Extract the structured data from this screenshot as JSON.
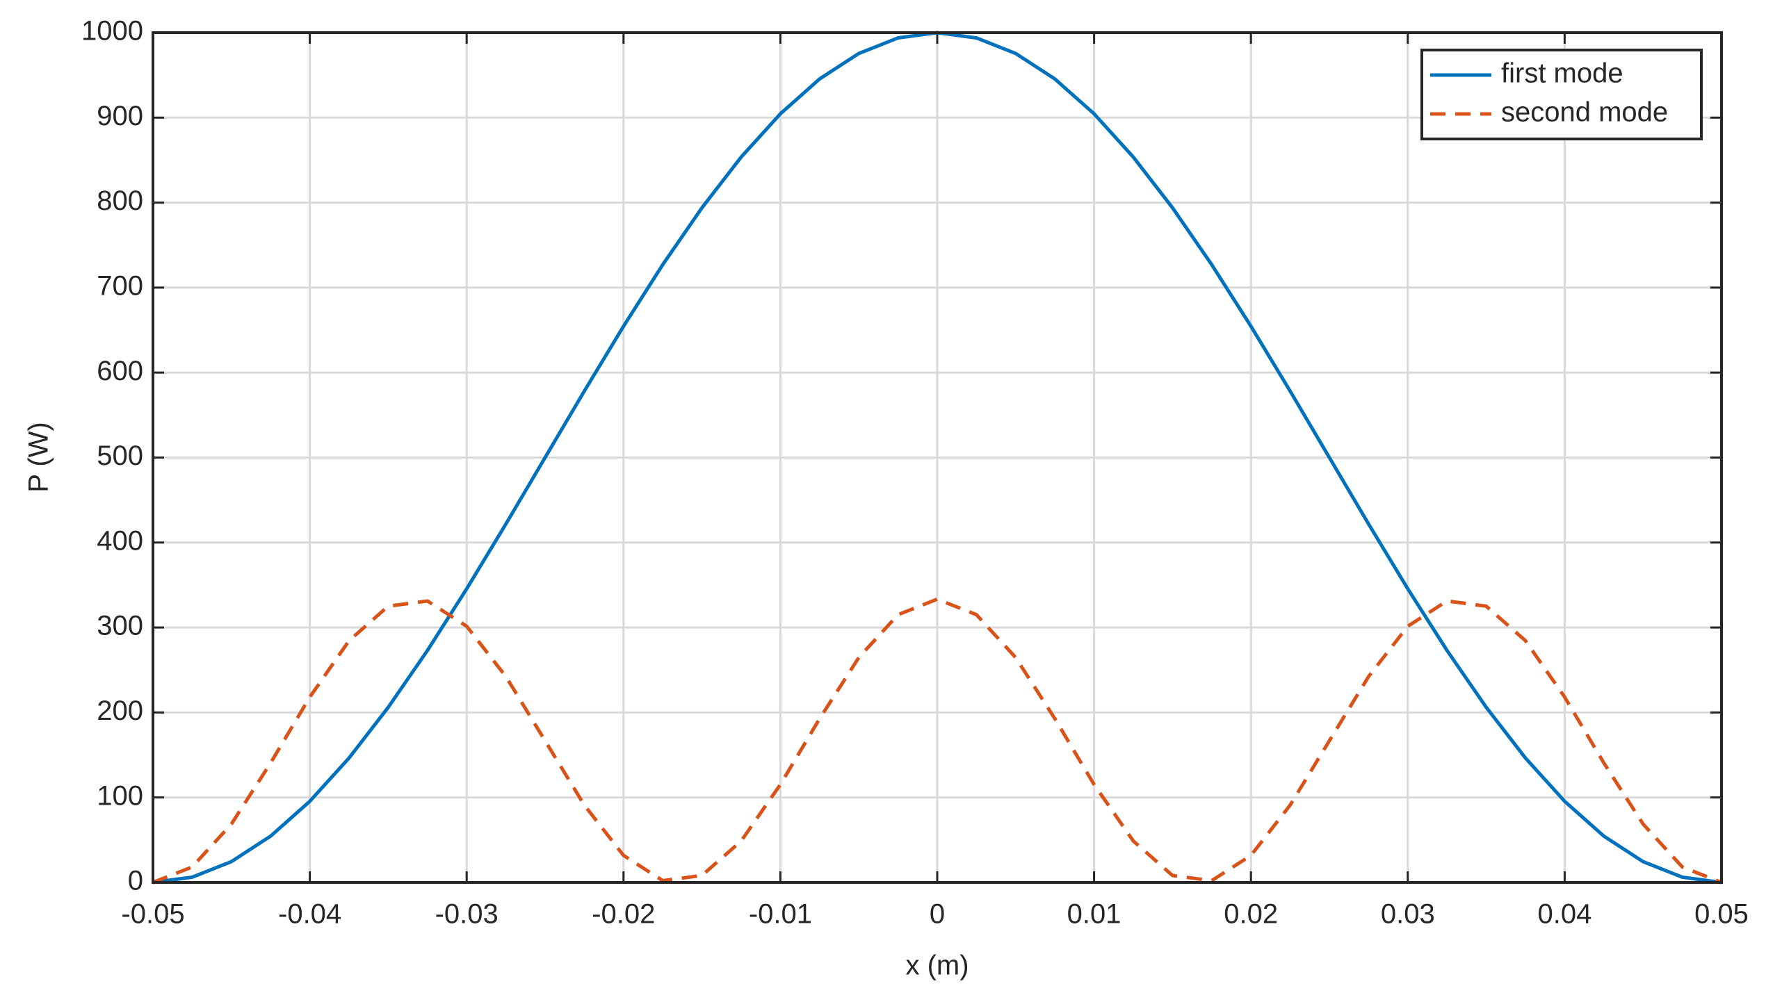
{
  "chart_data": {
    "type": "line",
    "xlabel": "x (m)",
    "ylabel": "P (W)",
    "x": [
      -0.05,
      -0.0475,
      -0.045,
      -0.0425,
      -0.04,
      -0.0375,
      -0.035,
      -0.0325,
      -0.03,
      -0.0275,
      -0.025,
      -0.0225,
      -0.02,
      -0.0175,
      -0.015,
      -0.0125,
      -0.01,
      -0.0075,
      -0.005,
      -0.0025,
      0,
      0.0025,
      0.005,
      0.0075,
      0.01,
      0.0125,
      0.015,
      0.0175,
      0.02,
      0.0225,
      0.025,
      0.0275,
      0.03,
      0.0325,
      0.035,
      0.0375,
      0.04,
      0.0425,
      0.045,
      0.0475,
      0.05
    ],
    "series": [
      {
        "name": "first mode",
        "color": "#0072bd",
        "dash": "solid",
        "values": [
          0,
          6.2,
          24.5,
          54.5,
          95.5,
          146.4,
          206.1,
          273.0,
          345.5,
          421.8,
          500,
          578.2,
          654.5,
          727.0,
          793.9,
          853.6,
          904.5,
          945.5,
          975.5,
          993.8,
          1000,
          993.8,
          975.5,
          945.5,
          904.5,
          853.6,
          793.9,
          727.0,
          654.5,
          578.2,
          500,
          421.8,
          345.5,
          273.0,
          206.1,
          146.4,
          95.5,
          54.5,
          24.5,
          6.2,
          0
        ]
      },
      {
        "name": "second mode",
        "color": "#d95319",
        "dash": "dashed",
        "values": [
          0,
          18.2,
          68.7,
          140.6,
          218.1,
          284.5,
          325.1,
          331.2,
          301.5,
          242.3,
          166.7,
          91.0,
          31.8,
          2.1,
          8.2,
          48.8,
          115.2,
          192.7,
          264.6,
          315.1,
          333.3,
          315.1,
          264.6,
          192.7,
          115.2,
          48.8,
          8.2,
          2.1,
          31.8,
          91.0,
          166.7,
          242.3,
          301.5,
          331.2,
          325.1,
          284.5,
          218.1,
          140.6,
          68.7,
          18.2,
          0
        ]
      }
    ],
    "xlim": [
      -0.05,
      0.05
    ],
    "xticks": [
      -0.05,
      -0.04,
      -0.03,
      -0.02,
      -0.01,
      0,
      0.01,
      0.02,
      0.03,
      0.04,
      0.05
    ],
    "ylim": [
      0,
      1000
    ],
    "yticks": [
      0,
      100,
      200,
      300,
      400,
      500,
      600,
      700,
      800,
      900,
      1000
    ],
    "grid": true,
    "legend": "upper right"
  }
}
